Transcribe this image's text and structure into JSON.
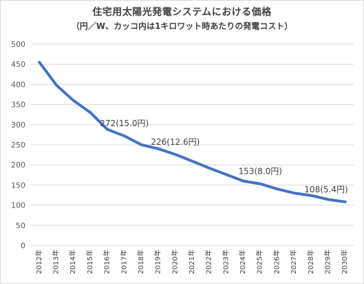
{
  "chart_data": {
    "type": "line",
    "title": "住宅用太陽光発電システムにおける価格",
    "subtitle": "（円／W、カッコ内は1キロワット時あたりの発電コスト）",
    "xlabel": "",
    "ylabel": "",
    "ylim": [
      0,
      500
    ],
    "yticks": [
      0,
      50,
      100,
      150,
      200,
      250,
      300,
      350,
      400,
      450,
      500
    ],
    "grid": true,
    "legend": "none",
    "categories": [
      "2012年",
      "2013年",
      "2014年",
      "2015年",
      "2016年",
      "2017年",
      "2018年",
      "2019年",
      "2020年",
      "2021年",
      "2022年",
      "2023年",
      "2024年",
      "2025年",
      "2026年",
      "2027年",
      "2028年",
      "2029年",
      "2030年"
    ],
    "series": [
      {
        "values": [
          455,
          398,
          360,
          330,
          288,
          272,
          250,
          240,
          226,
          209,
          192,
          176,
          160,
          153,
          140,
          130,
          124,
          114,
          108
        ],
        "color": "#4472c4"
      }
    ],
    "annotations": [
      {
        "index": 5,
        "text": "272(15.0円)"
      },
      {
        "index": 8,
        "text": "226(12.6円)"
      },
      {
        "index": 13,
        "text": "153(8.0円)"
      },
      {
        "index": 18,
        "text": "108(5.4円)"
      }
    ]
  }
}
